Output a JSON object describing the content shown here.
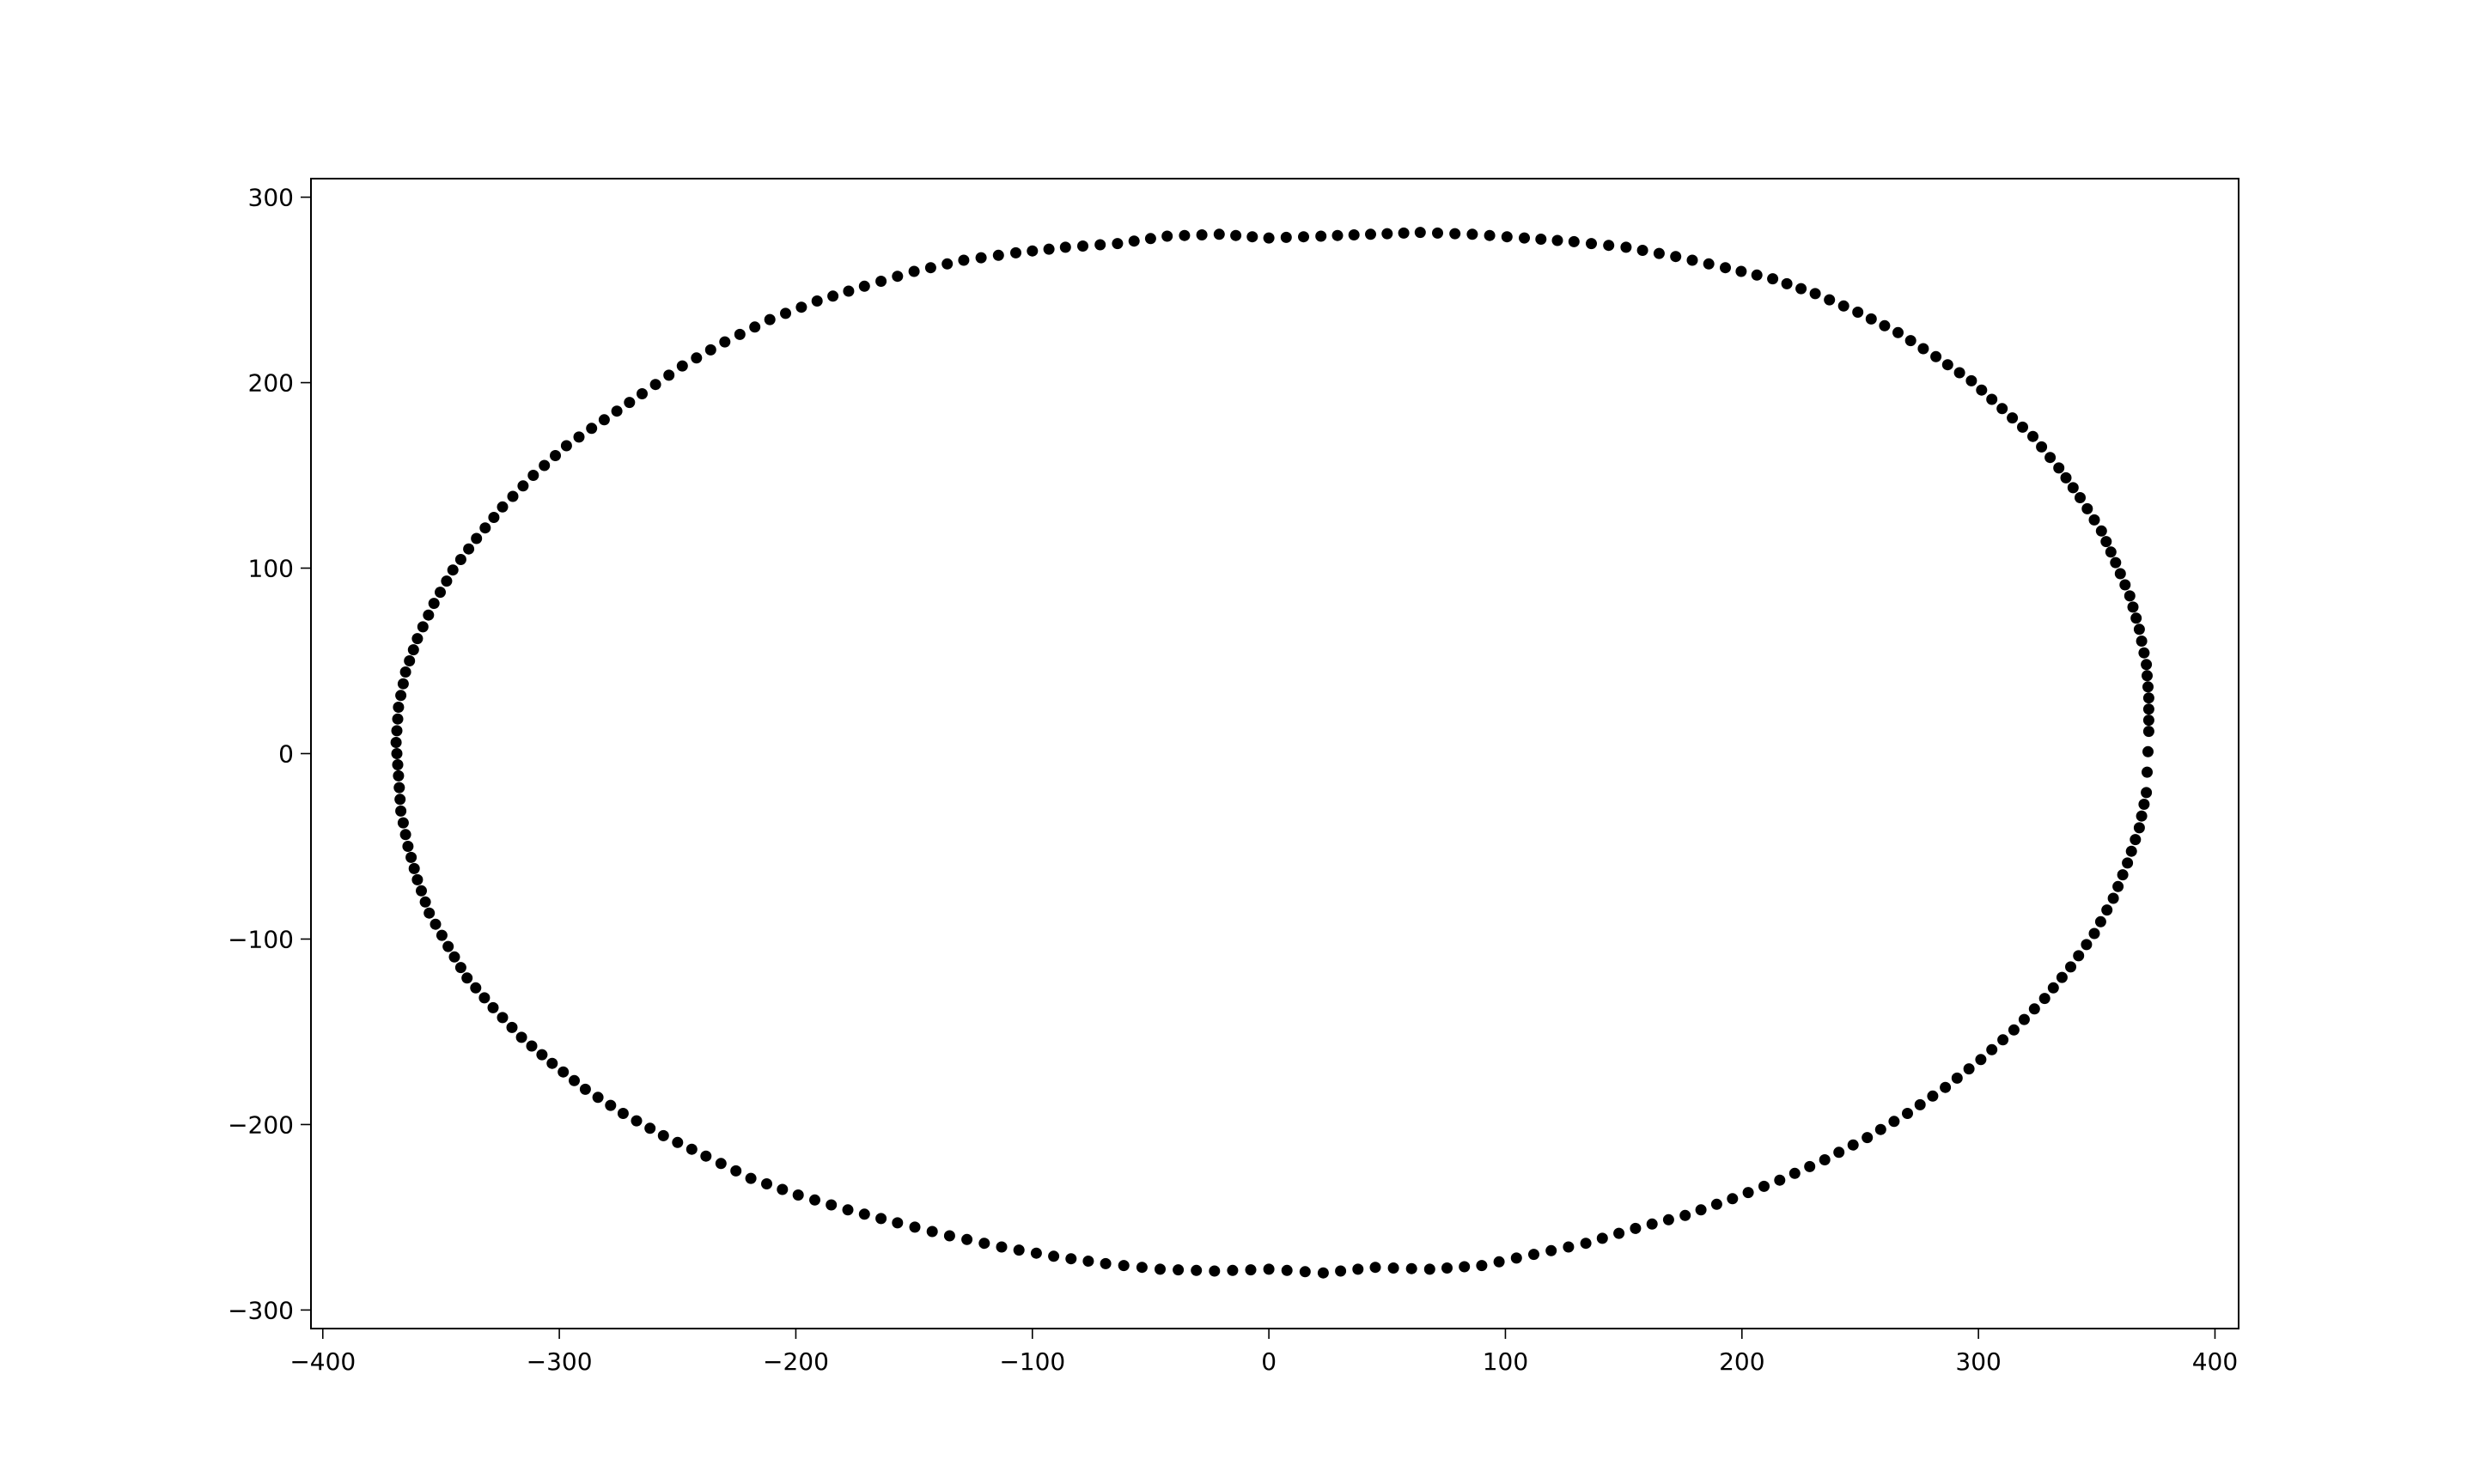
{
  "chart_data": {
    "type": "scatter",
    "title": "",
    "xlabel": "",
    "ylabel": "",
    "xlim": [
      -405,
      410
    ],
    "ylim": [
      -310,
      310
    ],
    "grid": false,
    "legend": "none",
    "xticks": [
      -400,
      -300,
      -200,
      -100,
      0,
      100,
      200,
      300,
      400
    ],
    "xtick_labels": [
      "−400",
      "−300",
      "−200",
      "−100",
      "0",
      "100",
      "200",
      "300",
      "400"
    ],
    "yticks": [
      -300,
      -200,
      -100,
      0,
      100,
      200,
      300
    ],
    "ytick_labels": [
      "−300",
      "−200",
      "−100",
      "0",
      "100",
      "200",
      "300"
    ],
    "marker_color": "#000000",
    "series": [
      {
        "marker": "circle",
        "points": [
          [
            372,
            12
          ],
          [
            372,
            30
          ],
          [
            371,
            48
          ],
          [
            368,
            67
          ],
          [
            364,
            85
          ],
          [
            358,
            103
          ],
          [
            352,
            120
          ],
          [
            343,
            138
          ],
          [
            334,
            154
          ],
          [
            323,
            171
          ],
          [
            310,
            186
          ],
          [
            297,
            201
          ],
          [
            282,
            214
          ],
          [
            266,
            227
          ],
          [
            249,
            238
          ],
          [
            231,
            248
          ],
          [
            213,
            256
          ],
          [
            193,
            262
          ],
          [
            172,
            268
          ],
          [
            151,
            273
          ],
          [
            129,
            276
          ],
          [
            108,
            278
          ],
          [
            86,
            280
          ],
          [
            64,
            281
          ],
          [
            43,
            280
          ],
          [
            22,
            279
          ],
          [
            0,
            278
          ],
          [
            -21,
            280
          ],
          [
            -43,
            279
          ],
          [
            -64,
            275
          ],
          [
            -86,
            273
          ],
          [
            -107,
            270
          ],
          [
            -129,
            266
          ],
          [
            -150,
            260
          ],
          [
            -171,
            252
          ],
          [
            -191,
            244
          ],
          [
            -211,
            234
          ],
          [
            -230,
            222
          ],
          [
            -248,
            209
          ],
          [
            -265,
            194
          ],
          [
            -281,
            180
          ],
          [
            -297,
            166
          ],
          [
            -311,
            150
          ],
          [
            -324,
            133
          ],
          [
            -335,
            116
          ],
          [
            -345,
            99
          ],
          [
            -353,
            81
          ],
          [
            -360,
            62
          ],
          [
            -365,
            44
          ],
          [
            -368,
            25
          ],
          [
            -369,
            6
          ],
          [
            -368,
            -12
          ],
          [
            -367,
            -31
          ],
          [
            -364,
            -50
          ],
          [
            -360,
            -68
          ],
          [
            -355,
            -86
          ],
          [
            -347,
            -104
          ],
          [
            -339,
            -121
          ],
          [
            -328,
            -137
          ],
          [
            -316,
            -153
          ],
          [
            -303,
            -167
          ],
          [
            -289,
            -181
          ],
          [
            -273,
            -194
          ],
          [
            -256,
            -206
          ],
          [
            -238,
            -217
          ],
          [
            -219,
            -229
          ],
          [
            -199,
            -238
          ],
          [
            -178,
            -246
          ],
          [
            -157,
            -253
          ],
          [
            -135,
            -260
          ],
          [
            -113,
            -266
          ],
          [
            -91,
            -271
          ],
          [
            -69,
            -275
          ],
          [
            -46,
            -278
          ],
          [
            -23,
            -279
          ],
          [
            0,
            -278
          ],
          [
            23,
            -280
          ],
          [
            45,
            -277
          ],
          [
            68,
            -278
          ],
          [
            90,
            -276
          ],
          [
            112,
            -270
          ],
          [
            134,
            -264
          ],
          [
            155,
            -256
          ],
          [
            176,
            -249
          ],
          [
            196,
            -240
          ],
          [
            216,
            -230
          ],
          [
            235,
            -219
          ],
          [
            253,
            -207
          ],
          [
            270,
            -194
          ],
          [
            286,
            -180
          ],
          [
            301,
            -165
          ],
          [
            315,
            -149
          ],
          [
            328,
            -132
          ],
          [
            339,
            -115
          ],
          [
            349,
            -97
          ],
          [
            357,
            -78
          ],
          [
            363,
            -59
          ],
          [
            368,
            -40
          ],
          [
            371,
            -21
          ]
        ]
      }
    ]
  }
}
